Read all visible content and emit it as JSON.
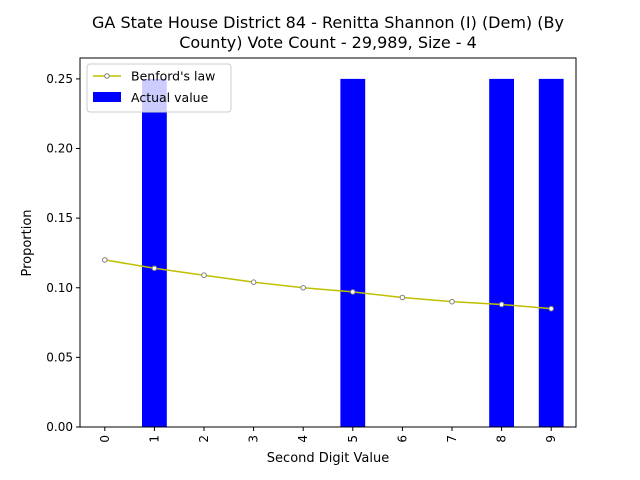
{
  "chart_data": {
    "type": "bar",
    "title_lines": [
      "GA State House District 84 - Renitta Shannon (I) (Dem) (By",
      "County) Vote Count - 29,989, Size - 4"
    ],
    "xlabel": "Second Digit Value",
    "ylabel": "Proportion",
    "categories": [
      "0",
      "1",
      "2",
      "3",
      "4",
      "5",
      "6",
      "7",
      "8",
      "9"
    ],
    "y_ticks": [
      "0.00",
      "0.05",
      "0.10",
      "0.15",
      "0.20",
      "0.25"
    ],
    "ylim": [
      0,
      0.265
    ],
    "grid": false,
    "legend_position": "top-left",
    "series": [
      {
        "name": "Benford's law",
        "kind": "line",
        "color": "#bfbf00",
        "values": [
          0.12,
          0.114,
          0.109,
          0.104,
          0.1,
          0.097,
          0.093,
          0.09,
          0.088,
          0.085
        ]
      },
      {
        "name": "Actual value",
        "kind": "bar",
        "color": "#0000ff",
        "values": [
          0,
          0.25,
          0,
          0,
          0,
          0.25,
          0,
          0,
          0.25,
          0.25
        ]
      }
    ]
  }
}
